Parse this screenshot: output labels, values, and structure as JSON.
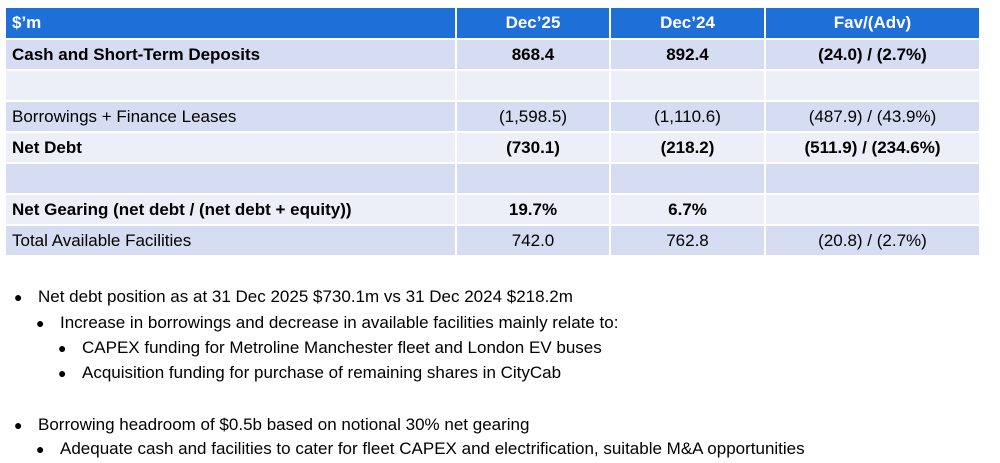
{
  "table": {
    "headers": [
      "$’m",
      "Dec’25",
      "Dec’24",
      "Fav/(Adv)"
    ],
    "rows": [
      {
        "label": "Cash and Short-Term Deposits",
        "dec25": "868.4",
        "dec24": "892.4",
        "fav": "(24.0) / (2.7%)"
      },
      {
        "label": "",
        "dec25": "",
        "dec24": "",
        "fav": ""
      },
      {
        "label": "Borrowings + Finance Leases",
        "dec25": "(1,598.5)",
        "dec24": "(1,110.6)",
        "fav": "(487.9) / (43.9%)"
      },
      {
        "label": "Net Debt",
        "dec25": "(730.1)",
        "dec24": "(218.2)",
        "fav": "(511.9) / (234.6%)"
      },
      {
        "label": "",
        "dec25": "",
        "dec24": "",
        "fav": ""
      },
      {
        "label": "Net Gearing (net debt / (net debt + equity))",
        "dec25": "19.7%",
        "dec24": "6.7%",
        "fav": ""
      },
      {
        "label": "Total Available Facilities",
        "dec25": "742.0",
        "dec24": "762.8",
        "fav": "(20.8) / (2.7%)"
      }
    ]
  },
  "bullets": [
    "Net debt position as at 31 Dec 2025 $730.1m vs 31 Dec 2024 $218.2m",
    "Increase in borrowings and decrease in available facilities mainly relate to:",
    "CAPEX funding for Metroline Manchester fleet and London EV buses",
    "Acquisition funding for purchase of remaining shares in CityCab",
    "Borrowing headroom of $0.5b based on notional 30% net gearing",
    "Adequate cash and facilities to cater for fleet CAPEX and electrification, suitable M&A opportunities"
  ],
  "colors": {
    "header_bg": "#1f6fd9",
    "row_shade_dark": "#d6dcf1",
    "row_shade_light": "#eceff8",
    "bullet_text": "#000000"
  }
}
